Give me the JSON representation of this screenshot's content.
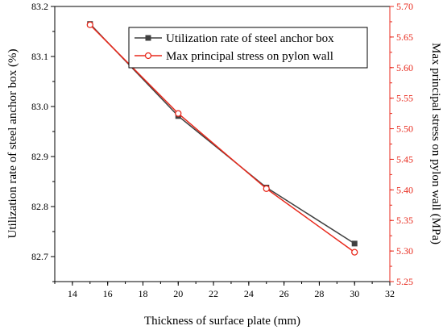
{
  "chart_data": {
    "type": "line",
    "xlabel": "Thickness of surface plate (mm)",
    "ylabel_left": "Utilization rate of steel anchor box (%)",
    "ylabel_right": "Max principal stress on pylon wall (MPa)",
    "xlim": [
      13,
      32
    ],
    "ylim_left": [
      82.65,
      83.2
    ],
    "ylim_right": [
      5.25,
      5.7
    ],
    "x_ticks": [
      "14",
      "16",
      "18",
      "20",
      "22",
      "24",
      "26",
      "28",
      "30",
      "32"
    ],
    "y_left_ticks": [
      "82.7",
      "82.8",
      "82.9",
      "83.0",
      "83.1",
      "83.2"
    ],
    "y_right_ticks": [
      "5.25",
      "5.30",
      "5.35",
      "5.40",
      "5.45",
      "5.50",
      "5.55",
      "5.60",
      "5.65",
      "5.70"
    ],
    "legend_position": "top-right",
    "series": [
      {
        "name": "Utilization rate of steel anchor box",
        "axis": "left",
        "marker": "square-filled",
        "color": "#404040",
        "x": [
          15,
          20,
          25,
          30
        ],
        "values": [
          83.165,
          82.981,
          82.838,
          82.726
        ]
      },
      {
        "name": "Max principal stress on pylon wall",
        "axis": "right",
        "marker": "circle-open",
        "color": "#e8291c",
        "x": [
          15,
          20,
          25,
          30
        ],
        "values": [
          5.67,
          5.525,
          5.402,
          5.298
        ]
      }
    ]
  }
}
